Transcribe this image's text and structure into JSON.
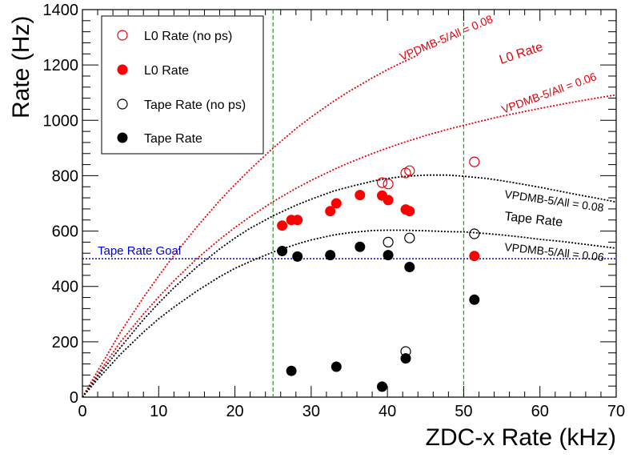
{
  "chart_data": {
    "type": "scatter",
    "xlabel": "ZDC-x Rate (kHz)",
    "ylabel": "Rate (Hz)",
    "xlim": [
      0,
      70
    ],
    "ylim": [
      0,
      1400
    ],
    "x_ticks": [
      0,
      10,
      20,
      30,
      40,
      50,
      60,
      70
    ],
    "y_ticks": [
      0,
      200,
      400,
      600,
      800,
      1000,
      1200,
      1400
    ],
    "grid": false,
    "legend_placement": "top-left",
    "series": [
      {
        "name": "L0 Rate (no ps)",
        "marker": "open-circle",
        "color": "#e8000a",
        "points": [
          [
            39.3,
            775
          ],
          [
            40.1,
            770
          ],
          [
            42.4,
            810
          ],
          [
            42.9,
            818
          ],
          [
            51.4,
            850
          ]
        ]
      },
      {
        "name": "L0 Rate",
        "marker": "filled-circle",
        "color": "#ff0000",
        "points": [
          [
            26.2,
            620
          ],
          [
            27.4,
            640
          ],
          [
            28.2,
            640
          ],
          [
            32.5,
            672
          ],
          [
            33.3,
            700
          ],
          [
            36.4,
            730
          ],
          [
            39.3,
            728
          ],
          [
            40.1,
            712
          ],
          [
            42.4,
            678
          ],
          [
            42.9,
            672
          ],
          [
            51.4,
            510
          ]
        ]
      },
      {
        "name": "Tape Rate (no ps)",
        "marker": "open-circle",
        "color": "#000000",
        "points": [
          [
            40.1,
            560
          ],
          [
            42.9,
            575
          ],
          [
            51.4,
            590
          ],
          [
            42.4,
            165
          ]
        ]
      },
      {
        "name": "Tape Rate",
        "marker": "filled-circle",
        "color": "#000000",
        "points": [
          [
            26.2,
            528
          ],
          [
            28.2,
            508
          ],
          [
            32.5,
            513
          ],
          [
            36.4,
            543
          ],
          [
            40.1,
            513
          ],
          [
            42.9,
            470
          ],
          [
            51.4,
            352
          ],
          [
            27.4,
            95
          ],
          [
            33.3,
            110
          ],
          [
            39.3,
            38
          ],
          [
            42.4,
            140
          ]
        ]
      }
    ],
    "curves": [
      {
        "name": "L0 Rate, VPDMB-5/All = 0.08",
        "color": "#e8000a",
        "style": "dotted",
        "x": [
          0,
          2,
          5,
          8,
          10,
          12,
          15,
          18,
          20,
          22,
          25,
          28,
          30,
          33,
          35,
          38,
          40,
          42,
          44
        ],
        "y": [
          0,
          95,
          235,
          360,
          438,
          512,
          615,
          710,
          768,
          823,
          900,
          970,
          1012,
          1070,
          1105,
          1153,
          1183,
          1210,
          1236
        ]
      },
      {
        "name": "L0 Rate, VPDMB-5/All = 0.06",
        "color": "#e8000a",
        "style": "dotted",
        "x": [
          0,
          2,
          5,
          8,
          10,
          12,
          15,
          18,
          20,
          22,
          25,
          28,
          30,
          33,
          35,
          38,
          40,
          42,
          45,
          48,
          50,
          53,
          55,
          58,
          60,
          63,
          65,
          68,
          70
        ],
        "y": [
          0,
          82,
          200,
          300,
          362,
          420,
          500,
          570,
          613,
          652,
          706,
          754,
          783,
          823,
          847,
          880,
          900,
          919,
          945,
          968,
          982,
          1002,
          1015,
          1032,
          1043,
          1059,
          1069,
          1083,
          1092
        ]
      },
      {
        "name": "Tape Rate, VPDMB-5/All = 0.08",
        "color": "#000000",
        "style": "dotted",
        "x": [
          0,
          2,
          5,
          8,
          10,
          12,
          15,
          18,
          20,
          22,
          25,
          28,
          30,
          33,
          35,
          38,
          40,
          42,
          45,
          48,
          50,
          53,
          55,
          58,
          60,
          63,
          65,
          68,
          70
        ],
        "y": [
          0,
          75,
          180,
          280,
          340,
          395,
          470,
          535,
          575,
          610,
          655,
          693,
          715,
          745,
          760,
          780,
          790,
          797,
          802,
          802,
          798,
          790,
          782,
          768,
          758,
          742,
          731,
          716,
          705
        ]
      },
      {
        "name": "Tape Rate, VPDMB-5/All = 0.06",
        "color": "#000000",
        "style": "dotted",
        "x": [
          0,
          2,
          5,
          8,
          10,
          12,
          15,
          18,
          20,
          22,
          25,
          28,
          30,
          33,
          35,
          38,
          40,
          42,
          45,
          48,
          50,
          53,
          55,
          58,
          60,
          63,
          65,
          68,
          70
        ],
        "y": [
          0,
          65,
          155,
          235,
          283,
          325,
          383,
          435,
          465,
          490,
          524,
          552,
          568,
          586,
          594,
          602,
          603,
          603,
          601,
          598,
          597,
          591,
          586,
          577,
          570,
          562,
          555,
          545,
          538
        ]
      }
    ],
    "hlines": [
      {
        "y": 500,
        "color": "#0000e0",
        "style": "dotted",
        "label": "Tape Rate Goal"
      }
    ],
    "vlines": [
      {
        "x": 25,
        "color": "#00b000",
        "style": "dashed"
      },
      {
        "x": 50,
        "color": "#00b000",
        "style": "dashed"
      }
    ],
    "annotations": [
      {
        "text": "VPDMB-5/All = 0.08",
        "color": "#e8000a"
      },
      {
        "text": "L0 Rate",
        "color": "#e8000a"
      },
      {
        "text": "VPDMB-5/All = 0.06",
        "color": "#e8000a"
      },
      {
        "text": "VPDMB-5/All = 0.08",
        "color": "#000000"
      },
      {
        "text": "Tape Rate",
        "color": "#000000"
      },
      {
        "text": "VPDMB-5/All = 0.06",
        "color": "#000000"
      }
    ]
  }
}
